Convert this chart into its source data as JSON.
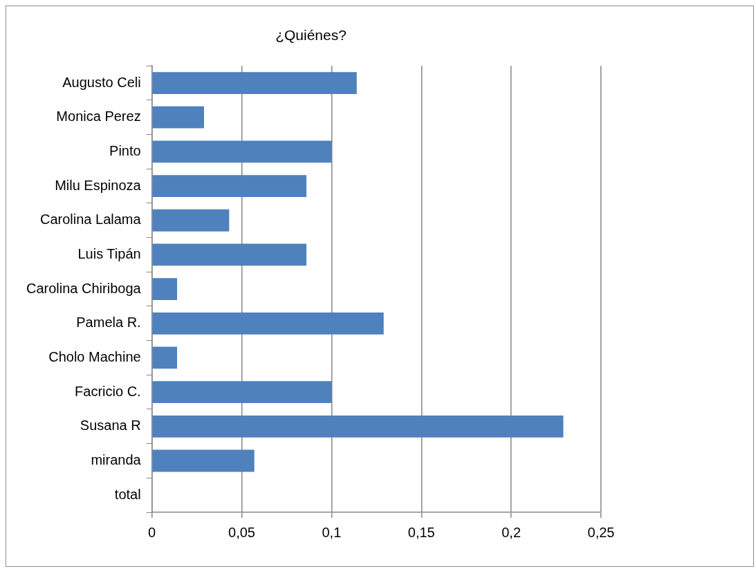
{
  "chart_data": {
    "type": "bar",
    "orientation": "horizontal",
    "title": "¿Quiénes?",
    "categories": [
      "Augusto Celi",
      "Monica Perez",
      "Pinto",
      "Milu Espinoza",
      "Carolina Lalama",
      "Luis Tipán",
      "Carolina Chiriboga",
      "Pamela R.",
      "Cholo Machine",
      "Facricio C.",
      "Susana R",
      "miranda",
      "total"
    ],
    "values": [
      0.114,
      0.029,
      0.1,
      0.086,
      0.043,
      0.086,
      0.014,
      0.129,
      0.014,
      0.1,
      0.229,
      0.057,
      0
    ],
    "color": "#4f81bd",
    "xlim": [
      0,
      0.25
    ],
    "xticks": [
      0,
      {
        "value": 0.05,
        "label": "0,05"
      },
      {
        "value": 0.1,
        "label": "0,1"
      },
      {
        "value": 0.15,
        "label": "0,15"
      },
      {
        "value": 0.2,
        "label": "0,2"
      },
      {
        "value": 0.25,
        "label": "0,25"
      }
    ],
    "grid": "x",
    "legend": false
  }
}
